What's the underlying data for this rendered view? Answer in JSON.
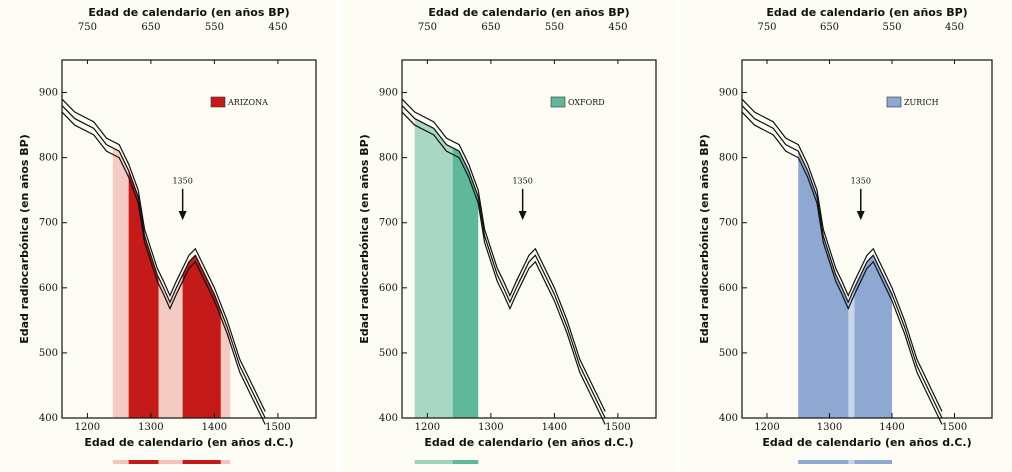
{
  "chart_data": [
    {
      "type": "area",
      "legend": "ARIZONA",
      "legend_placement": "top-right",
      "fill_color": "#c41a1a",
      "light_color": "#f4c4bc",
      "xlabel": "Edad de calendario (en años d.C.)",
      "ylabel": "Edad radiocarbónica (en años BP)",
      "top_label": "Edad de calendario (en años BP)",
      "xlim": [
        1160,
        1560
      ],
      "ylim": [
        400,
        950
      ],
      "x_ticks": [
        "1200",
        "1300",
        "1400",
        "1500"
      ],
      "y_ticks": [
        "400",
        "500",
        "600",
        "700",
        "800",
        "900"
      ],
      "top_ticks": [
        "750",
        "650",
        "550",
        "450"
      ],
      "annotation": "1350",
      "light_range": [
        1240,
        1425
      ],
      "dark_ranges": [
        [
          1265,
          1312
        ],
        [
          1350,
          1410
        ]
      ]
    },
    {
      "type": "area",
      "legend": "OXFORD",
      "legend_placement": "top-right",
      "fill_color": "#5fb89a",
      "light_color": "#9ed4be",
      "xlabel": "Edad de calendario (en años d.C.)",
      "ylabel": "Edad radiocarbónica (en años BP)",
      "top_label": "Edad de calendario (en años BP)",
      "xlim": [
        1160,
        1560
      ],
      "ylim": [
        400,
        950
      ],
      "x_ticks": [
        "1200",
        "1300",
        "1400",
        "1500"
      ],
      "y_ticks": [
        "400",
        "500",
        "600",
        "700",
        "800",
        "900"
      ],
      "top_ticks": [
        "750",
        "650",
        "550",
        "450"
      ],
      "annotation": "1350",
      "light_range": [
        1180,
        1280
      ],
      "dark_ranges": [
        [
          1240,
          1280
        ]
      ]
    },
    {
      "type": "area",
      "legend": "ZURICH",
      "legend_placement": "top-right",
      "fill_color": "#8fa8d2",
      "light_color": "#c2d2ea",
      "xlabel": "Edad de calendario (en años d.C.)",
      "ylabel": "Edad radiocarbónica (en años BP)",
      "top_label": "Edad de calendario (en años BP)",
      "xlim": [
        1160,
        1560
      ],
      "ylim": [
        400,
        950
      ],
      "x_ticks": [
        "1200",
        "1300",
        "1400",
        "1500"
      ],
      "y_ticks": [
        "400",
        "500",
        "600",
        "700",
        "800",
        "900"
      ],
      "top_ticks": [
        "750",
        "650",
        "550",
        "450"
      ],
      "annotation": "1350",
      "light_range": [
        1250,
        1400
      ],
      "dark_ranges": [
        [
          1250,
          1330
        ],
        [
          1340,
          1400
        ]
      ]
    }
  ],
  "calibration_curve": [
    [
      1160,
      880
    ],
    [
      1180,
      860
    ],
    [
      1210,
      845
    ],
    [
      1230,
      820
    ],
    [
      1250,
      810
    ],
    [
      1265,
      780
    ],
    [
      1280,
      740
    ],
    [
      1290,
      680
    ],
    [
      1300,
      650
    ],
    [
      1310,
      620
    ],
    [
      1320,
      600
    ],
    [
      1330,
      578
    ],
    [
      1340,
      600
    ],
    [
      1350,
      620
    ],
    [
      1360,
      640
    ],
    [
      1370,
      650
    ],
    [
      1380,
      630
    ],
    [
      1400,
      590
    ],
    [
      1420,
      540
    ],
    [
      1440,
      480
    ],
    [
      1460,
      440
    ],
    [
      1470,
      420
    ],
    [
      1480,
      400
    ]
  ]
}
